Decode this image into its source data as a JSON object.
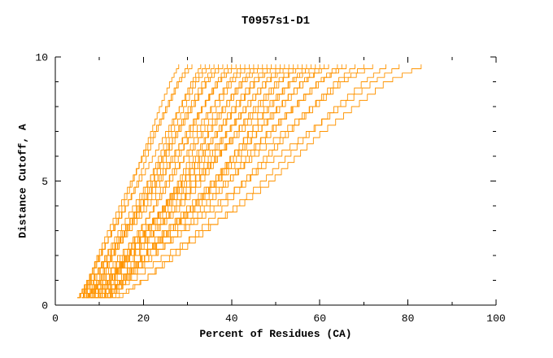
{
  "chart_data": {
    "type": "line",
    "title": "T0957s1-D1",
    "xlabel": "Percent of Residues (CA)",
    "ylabel": "Distance Cutoff, A",
    "xlim": [
      0,
      100
    ],
    "ylim": [
      0,
      10
    ],
    "x_ticks": [
      0,
      20,
      40,
      60,
      80,
      100
    ],
    "x_minor_ticks": [
      10,
      30,
      50,
      70,
      90
    ],
    "y_ticks": [
      0,
      5,
      10
    ],
    "y_minor_ticks": [
      1,
      2,
      3,
      4,
      6,
      7,
      8,
      9
    ],
    "grid": false,
    "legend": "none",
    "line_color": "#ff9400",
    "y_levels": [
      0.3,
      1,
      2,
      3,
      4,
      5,
      6,
      7,
      8,
      9,
      9.7
    ],
    "series": [
      {
        "x": [
          5,
          7.3,
          10.1,
          12.6,
          15.1,
          17.4,
          19.5,
          21.6,
          23.6,
          25.9,
          28
        ]
      },
      {
        "x": [
          6,
          7.4,
          9.4,
          11.8,
          14.4,
          17.0,
          19.7,
          22.3,
          25.0,
          27.6,
          30
        ]
      },
      {
        "x": [
          5,
          7.1,
          9.7,
          12.8,
          15.9,
          18.5,
          20.6,
          22.7,
          25.3,
          27.9,
          31
        ]
      },
      {
        "x": [
          7,
          9.6,
          12.7,
          15.6,
          18.4,
          21.0,
          23.4,
          25.7,
          28.1,
          30.7,
          33
        ]
      },
      {
        "x": [
          6,
          7.7,
          9.9,
          12.7,
          15.8,
          18.9,
          22.0,
          25.0,
          28.1,
          31.2,
          34
        ]
      },
      {
        "x": [
          8,
          10.2,
          12.9,
          16.1,
          19.3,
          22.0,
          24.2,
          26.4,
          29.1,
          31.8,
          35
        ]
      },
      {
        "x": [
          5,
          8.1,
          11.8,
          15.2,
          18.6,
          21.7,
          24.5,
          27.3,
          30.1,
          33.2,
          36
        ]
      },
      {
        "x": [
          7,
          8.8,
          11.2,
          14.2,
          17.5,
          20.8,
          24.1,
          27.4,
          30.7,
          34.0,
          37
        ]
      },
      {
        "x": [
          6,
          8.6,
          11.8,
          15.6,
          19.4,
          22.6,
          25.2,
          27.8,
          31.0,
          34.2,
          38
        ]
      },
      {
        "x": [
          9,
          12.0,
          15.6,
          18.9,
          22.2,
          25.2,
          27.9,
          30.6,
          33.3,
          36.3,
          39
        ]
      },
      {
        "x": [
          8,
          9.9,
          12.5,
          15.7,
          19.2,
          22.7,
          26.2,
          29.8,
          33.3,
          36.8,
          40
        ]
      },
      {
        "x": [
          5,
          7.9,
          11.5,
          15.8,
          20.1,
          23.7,
          26.6,
          29.5,
          33.1,
          36.7,
          41
        ]
      },
      {
        "x": [
          7,
          10.5,
          14.7,
          18.6,
          22.4,
          25.9,
          29.1,
          32.2,
          35.4,
          38.9,
          42
        ]
      },
      {
        "x": [
          6,
          8.2,
          11.2,
          14.9,
          19.0,
          23.0,
          27.1,
          31.2,
          35.2,
          39.3,
          43
        ]
      },
      {
        "x": [
          10,
          12.7,
          16.1,
          20.2,
          24.3,
          27.7,
          30.4,
          33.1,
          36.5,
          39.9,
          44
        ]
      },
      {
        "x": [
          8,
          11.7,
          16.1,
          20.2,
          24.3,
          28.0,
          31.3,
          34.6,
          38.0,
          41.7,
          45
        ]
      },
      {
        "x": [
          7,
          9.3,
          12.5,
          16.4,
          20.7,
          24.9,
          29.2,
          33.5,
          37.8,
          42.1,
          46
        ]
      },
      {
        "x": [
          9,
          12.0,
          15.8,
          20.4,
          25.0,
          28.8,
          31.8,
          34.8,
          38.6,
          42.4,
          47
        ]
      },
      {
        "x": [
          6,
          10.2,
          15.2,
          19.9,
          24.5,
          28.7,
          32.5,
          36.2,
          40.0,
          44.2,
          48
        ]
      },
      {
        "x": [
          11,
          13.3,
          16.3,
          20.1,
          24.3,
          28.5,
          32.7,
          36.8,
          41.0,
          45.2,
          49
        ]
      },
      {
        "x": [
          8,
          11.4,
          15.6,
          20.6,
          25.6,
          29.8,
          33.2,
          36.6,
          40.8,
          45.0,
          50
        ]
      },
      {
        "x": [
          7,
          11.4,
          16.7,
          21.5,
          26.4,
          30.8,
          34.7,
          38.7,
          42.6,
          47.0,
          51
        ]
      },
      {
        "x": [
          10,
          12.5,
          15.9,
          20.1,
          24.7,
          29.3,
          33.9,
          38.6,
          43.2,
          47.8,
          52
        ]
      },
      {
        "x": [
          9,
          12.5,
          16.9,
          22.2,
          27.5,
          31.9,
          35.4,
          38.9,
          43.3,
          47.7,
          53
        ]
      },
      {
        "x": [
          6,
          10.8,
          16.6,
          21.8,
          27.1,
          31.9,
          36.2,
          40.6,
          44.9,
          49.7,
          54
        ]
      },
      {
        "x": [
          12,
          14.6,
          18.0,
          22.3,
          27.1,
          31.8,
          36.5,
          41.2,
          46.0,
          50.7,
          55
        ]
      },
      {
        "x": [
          8,
          11.8,
          16.6,
          22.4,
          28.2,
          33.0,
          36.8,
          40.6,
          45.4,
          50.2,
          56
        ]
      },
      {
        "x": [
          10,
          14.7,
          20.3,
          25.5,
          30.7,
          35.4,
          39.6,
          43.8,
          48.1,
          52.8,
          57
        ]
      },
      {
        "x": [
          7,
          10.1,
          14.1,
          19.2,
          24.9,
          30.5,
          36.1,
          41.7,
          47.3,
          52.9,
          58
        ]
      },
      {
        "x": [
          11,
          14.8,
          19.6,
          25.4,
          31.2,
          36.0,
          39.8,
          43.6,
          48.4,
          53.2,
          59
        ]
      },
      {
        "x": [
          9,
          14.1,
          20.2,
          25.8,
          31.4,
          36.5,
          41.1,
          45.7,
          50.3,
          55.4,
          60
        ]
      },
      {
        "x": [
          13,
          15.9,
          19.7,
          24.5,
          29.8,
          35.1,
          40.4,
          45.6,
          50.9,
          56.2,
          61
        ]
      },
      {
        "x": [
          8,
          12.3,
          17.7,
          24.2,
          30.7,
          36.1,
          40.4,
          44.7,
          50.1,
          55.5,
          62
        ]
      },
      {
        "x": [
          10,
          15.4,
          21.9,
          27.8,
          33.8,
          39.2,
          44.0,
          48.9,
          53.7,
          59.1,
          64
        ]
      },
      {
        "x": [
          12,
          15.2,
          19.4,
          24.7,
          30.6,
          36.4,
          42.2,
          48.0,
          53.9,
          59.7,
          65
        ]
      },
      {
        "x": [
          9,
          13.6,
          19.3,
          26.1,
          32.9,
          38.6,
          43.2,
          47.8,
          53.5,
          59.2,
          66
        ]
      },
      {
        "x": [
          14,
          19.4,
          25.9,
          31.8,
          37.8,
          43.2,
          48.0,
          52.9,
          57.7,
          63.1,
          68
        ]
      },
      {
        "x": [
          11,
          14.5,
          19.3,
          25.2,
          31.7,
          38.1,
          44.6,
          51.1,
          57.6,
          64.1,
          70
        ]
      },
      {
        "x": [
          10,
          15.0,
          21.2,
          28.6,
          36.0,
          42.2,
          47.2,
          52.2,
          58.4,
          64.6,
          72
        ]
      },
      {
        "x": [
          13,
          19.2,
          26.6,
          33.5,
          40.3,
          46.5,
          52.1,
          57.6,
          63.2,
          69.4,
          75
        ]
      },
      {
        "x": [
          12,
          16.0,
          21.2,
          27.8,
          35.1,
          42.4,
          49.6,
          56.9,
          64.1,
          71.4,
          78
        ]
      },
      {
        "x": [
          11,
          16.8,
          24.0,
          32.6,
          41.2,
          48.4,
          54.2,
          60.0,
          67.2,
          74.4,
          83
        ]
      }
    ]
  }
}
